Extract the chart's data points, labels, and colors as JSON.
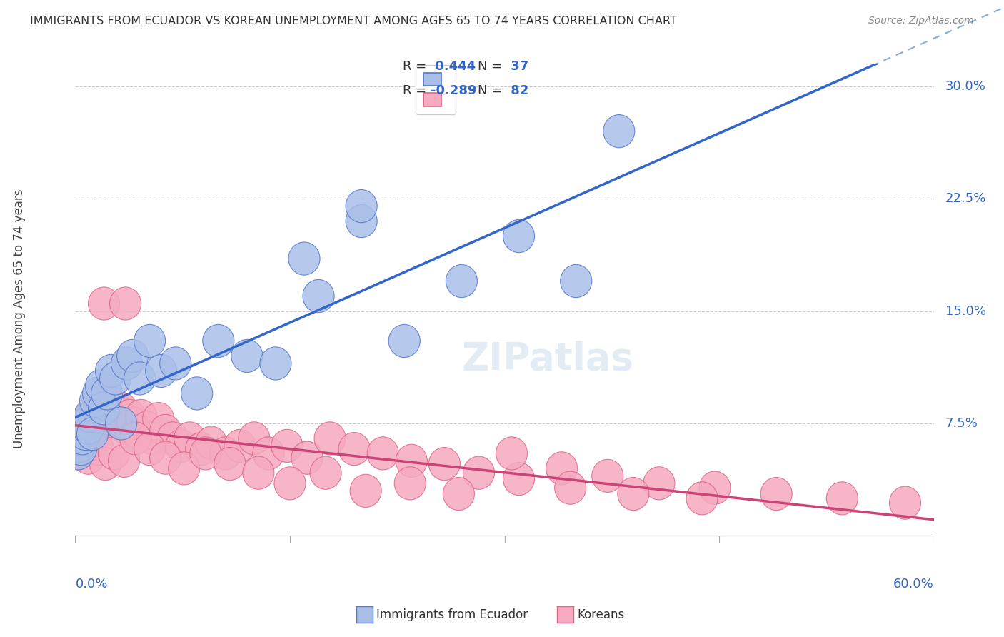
{
  "title": "IMMIGRANTS FROM ECUADOR VS KOREAN UNEMPLOYMENT AMONG AGES 65 TO 74 YEARS CORRELATION CHART",
  "source": "Source: ZipAtlas.com",
  "ylabel": "Unemployment Among Ages 65 to 74 years",
  "ytick_vals": [
    0.0,
    0.075,
    0.15,
    0.225,
    0.3
  ],
  "ytick_labels": [
    "",
    "7.5%",
    "15.0%",
    "22.5%",
    "30.0%"
  ],
  "xlim": [
    0.0,
    0.6
  ],
  "ylim": [
    -0.025,
    0.315
  ],
  "blue_face_color": "#AABFE8",
  "pink_face_color": "#F5AABF",
  "blue_edge_color": "#5577CC",
  "pink_edge_color": "#DD6688",
  "blue_line_color": "#3366CC",
  "pink_line_color": "#CC4477",
  "dash_line_color": "#88AADD",
  "grid_color": "#CCCCCC",
  "axis_color": "#3366BB",
  "title_color": "#333333",
  "source_color": "#888888",
  "legend_R_color": "#3366CC",
  "legend_N_color": "#3366CC",
  "blue_scatter_x": [
    0.002,
    0.003,
    0.004,
    0.005,
    0.006,
    0.007,
    0.008,
    0.009,
    0.01,
    0.012,
    0.014,
    0.016,
    0.018,
    0.02,
    0.022,
    0.025,
    0.028,
    0.032,
    0.036,
    0.04,
    0.045,
    0.052,
    0.06,
    0.07,
    0.085,
    0.1,
    0.12,
    0.14,
    0.17,
    0.2,
    0.23,
    0.27,
    0.31,
    0.35,
    0.2,
    0.16,
    0.38
  ],
  "blue_scatter_y": [
    0.055,
    0.06,
    0.058,
    0.065,
    0.07,
    0.068,
    0.075,
    0.072,
    0.08,
    0.068,
    0.09,
    0.095,
    0.1,
    0.085,
    0.095,
    0.11,
    0.105,
    0.075,
    0.115,
    0.12,
    0.105,
    0.13,
    0.11,
    0.115,
    0.095,
    0.13,
    0.12,
    0.115,
    0.16,
    0.21,
    0.13,
    0.17,
    0.2,
    0.17,
    0.22,
    0.185,
    0.27
  ],
  "pink_scatter_x": [
    0.002,
    0.003,
    0.004,
    0.005,
    0.006,
    0.007,
    0.008,
    0.009,
    0.01,
    0.011,
    0.012,
    0.013,
    0.014,
    0.015,
    0.016,
    0.018,
    0.02,
    0.022,
    0.024,
    0.026,
    0.028,
    0.03,
    0.032,
    0.035,
    0.038,
    0.04,
    0.043,
    0.046,
    0.05,
    0.054,
    0.058,
    0.063,
    0.068,
    0.074,
    0.08,
    0.088,
    0.095,
    0.105,
    0.115,
    0.125,
    0.135,
    0.148,
    0.162,
    0.178,
    0.195,
    0.215,
    0.235,
    0.258,
    0.282,
    0.31,
    0.34,
    0.372,
    0.408,
    0.447,
    0.49,
    0.536,
    0.58,
    0.003,
    0.006,
    0.009,
    0.012,
    0.016,
    0.021,
    0.027,
    0.034,
    0.042,
    0.052,
    0.063,
    0.076,
    0.091,
    0.108,
    0.128,
    0.15,
    0.175,
    0.203,
    0.234,
    0.268,
    0.305,
    0.346,
    0.39,
    0.438,
    0.02,
    0.035
  ],
  "pink_scatter_y": [
    0.058,
    0.062,
    0.065,
    0.06,
    0.068,
    0.072,
    0.07,
    0.075,
    0.065,
    0.08,
    0.075,
    0.068,
    0.085,
    0.078,
    0.09,
    0.085,
    0.08,
    0.075,
    0.09,
    0.088,
    0.082,
    0.078,
    0.085,
    0.072,
    0.08,
    0.075,
    0.068,
    0.08,
    0.072,
    0.065,
    0.078,
    0.07,
    0.065,
    0.06,
    0.065,
    0.058,
    0.062,
    0.055,
    0.06,
    0.065,
    0.055,
    0.06,
    0.052,
    0.065,
    0.058,
    0.055,
    0.05,
    0.048,
    0.042,
    0.038,
    0.045,
    0.04,
    0.035,
    0.032,
    0.028,
    0.025,
    0.022,
    0.055,
    0.06,
    0.052,
    0.065,
    0.058,
    0.048,
    0.055,
    0.05,
    0.065,
    0.058,
    0.052,
    0.045,
    0.055,
    0.048,
    0.042,
    0.035,
    0.042,
    0.03,
    0.035,
    0.028,
    0.055,
    0.032,
    0.028,
    0.025,
    0.155,
    0.155
  ]
}
